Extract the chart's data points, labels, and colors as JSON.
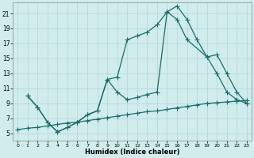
{
  "xlabel": "Humidex (Indice chaleur)",
  "bg_color": "#d0ecec",
  "grid_color": "#b8d8d8",
  "line_color": "#1a6b6b",
  "xlim": [
    -0.5,
    23.5
  ],
  "ylim": [
    4,
    22.5
  ],
  "xticks": [
    0,
    1,
    2,
    3,
    4,
    5,
    6,
    7,
    8,
    9,
    10,
    11,
    12,
    13,
    14,
    15,
    16,
    17,
    18,
    19,
    20,
    21,
    22,
    23
  ],
  "yticks": [
    5,
    7,
    9,
    11,
    13,
    15,
    17,
    19,
    21
  ],
  "line1_x": [
    1,
    2,
    3,
    4,
    5,
    6,
    7,
    8,
    9,
    10,
    11,
    12,
    13,
    14,
    15,
    16,
    17,
    18,
    19,
    20,
    21,
    22,
    23
  ],
  "line1_y": [
    10,
    8.5,
    6.5,
    5.2,
    5.8,
    6.5,
    7.5,
    8.0,
    12.2,
    12.5,
    17.5,
    18.0,
    18.5,
    19.5,
    21.2,
    22.0,
    20.2,
    17.5,
    15.2,
    13.0,
    10.5,
    9.5,
    9.0
  ],
  "line2_x": [
    1,
    2,
    3,
    4,
    5,
    6,
    7,
    8,
    9,
    10,
    11,
    12,
    13,
    14,
    15,
    16,
    17,
    19,
    20,
    21,
    22,
    23
  ],
  "line2_y": [
    10,
    8.5,
    6.5,
    5.2,
    5.8,
    6.5,
    7.5,
    8.0,
    12.2,
    10.5,
    9.5,
    9.8,
    10.2,
    10.5,
    21.2,
    20.2,
    17.5,
    15.2,
    15.5,
    13.0,
    10.5,
    9.0
  ],
  "line3_x": [
    0,
    1,
    2,
    3,
    4,
    5,
    6,
    7,
    8,
    9,
    10,
    11,
    12,
    13,
    14,
    15,
    16,
    17,
    18,
    19,
    20,
    21,
    22,
    23
  ],
  "line3_y": [
    5.5,
    5.7,
    5.8,
    6.0,
    6.2,
    6.4,
    6.5,
    6.7,
    6.9,
    7.1,
    7.3,
    7.5,
    7.7,
    7.9,
    8.0,
    8.2,
    8.4,
    8.6,
    8.8,
    9.0,
    9.1,
    9.2,
    9.3,
    9.4
  ]
}
